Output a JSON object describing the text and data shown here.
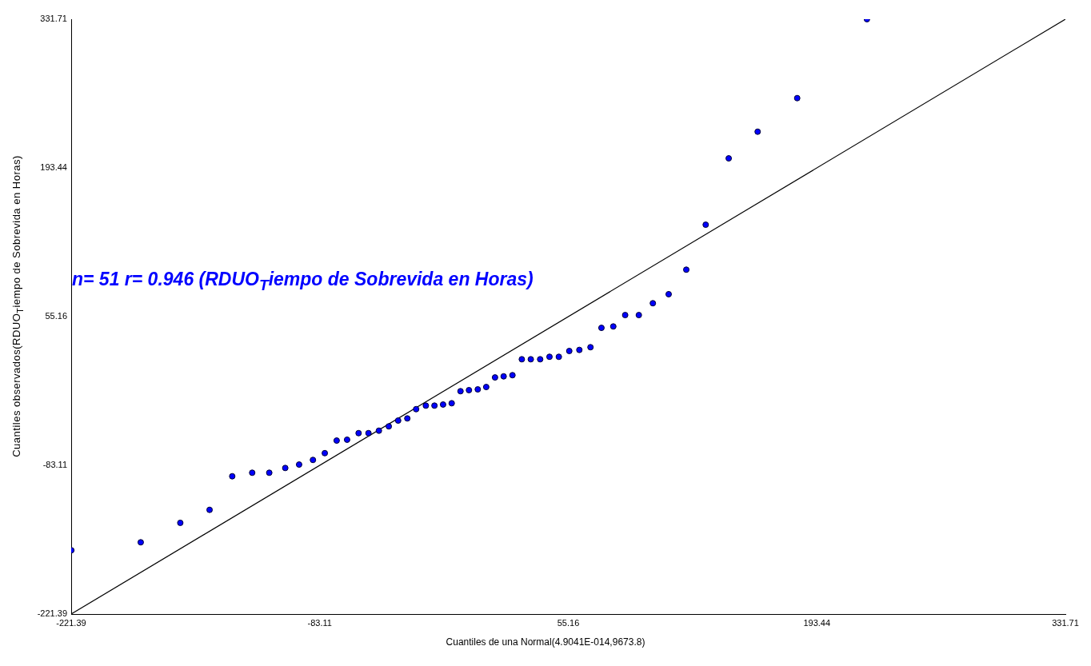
{
  "chart_data": {
    "type": "scatter",
    "xlabel": "Cuantiles de una Normal(4.9041E-014,9673.8)",
    "ylabel": "Cuantiles observados(RDUO$_{T}$iempo de Sobrevida en Horas)",
    "annotations": [
      "n= 51 r= 0.946 (RDUO$_{T}$iempo de Sobrevida en Horas)"
    ],
    "xlim": [
      -221.39,
      331.71
    ],
    "ylim": [
      -221.39,
      331.71
    ],
    "xticks": [
      -221.39,
      -83.11,
      55.16,
      193.44,
      331.71
    ],
    "yticks": [
      -221.39,
      -83.11,
      55.16,
      193.44,
      331.71
    ],
    "grid": false,
    "legend": false,
    "marker": "circle",
    "series": [
      {
        "color": "#0000ff",
        "x": [
          -221.3,
          -182.7,
          -160.7,
          -144.4,
          -131.8,
          -120.7,
          -111.2,
          -102.3,
          -94.6,
          -86.9,
          -80.3,
          -73.7,
          -67.9,
          -61.5,
          -56.0,
          -50.2,
          -44.7,
          -39.5,
          -34.4,
          -29.5,
          -24.1,
          -19.3,
          -14.5,
          -9.7,
          -4.8,
          -0.1,
          4.8,
          9.5,
          14.4,
          19.2,
          24.1,
          29.3,
          34.3,
          39.5,
          44.7,
          49.9,
          55.7,
          61.3,
          67.5,
          73.6,
          80.2,
          86.8,
          94.4,
          102.2,
          111.0,
          120.8,
          131.6,
          144.4,
          160.5,
          182.5,
          221.3
        ],
        "values": [
          -162.1,
          -154.7,
          -136.6,
          -124.5,
          -93.3,
          -90.0,
          -90.0,
          -85.6,
          -82.4,
          -78.1,
          -71.8,
          -60.1,
          -59.3,
          -53.2,
          -53.2,
          -50.9,
          -46.9,
          -41.5,
          -39.5,
          -30.9,
          -27.6,
          -27.6,
          -26.6,
          -25.4,
          -14.2,
          -13.2,
          -12.5,
          -10.3,
          -1.4,
          -0.4,
          0.7,
          15.5,
          15.5,
          15.5,
          17.8,
          17.8,
          23.2,
          24.2,
          26.7,
          44.7,
          46.0,
          56.6,
          56.6,
          67.6,
          76.0,
          98.8,
          140.6,
          202.3,
          227.1,
          258.3,
          331.7
        ]
      },
      {
        "type": "line",
        "marker": "none",
        "color": "#000000",
        "x": [
          -221.39,
          331.71
        ],
        "values": [
          -221.39,
          331.71
        ]
      }
    ]
  }
}
